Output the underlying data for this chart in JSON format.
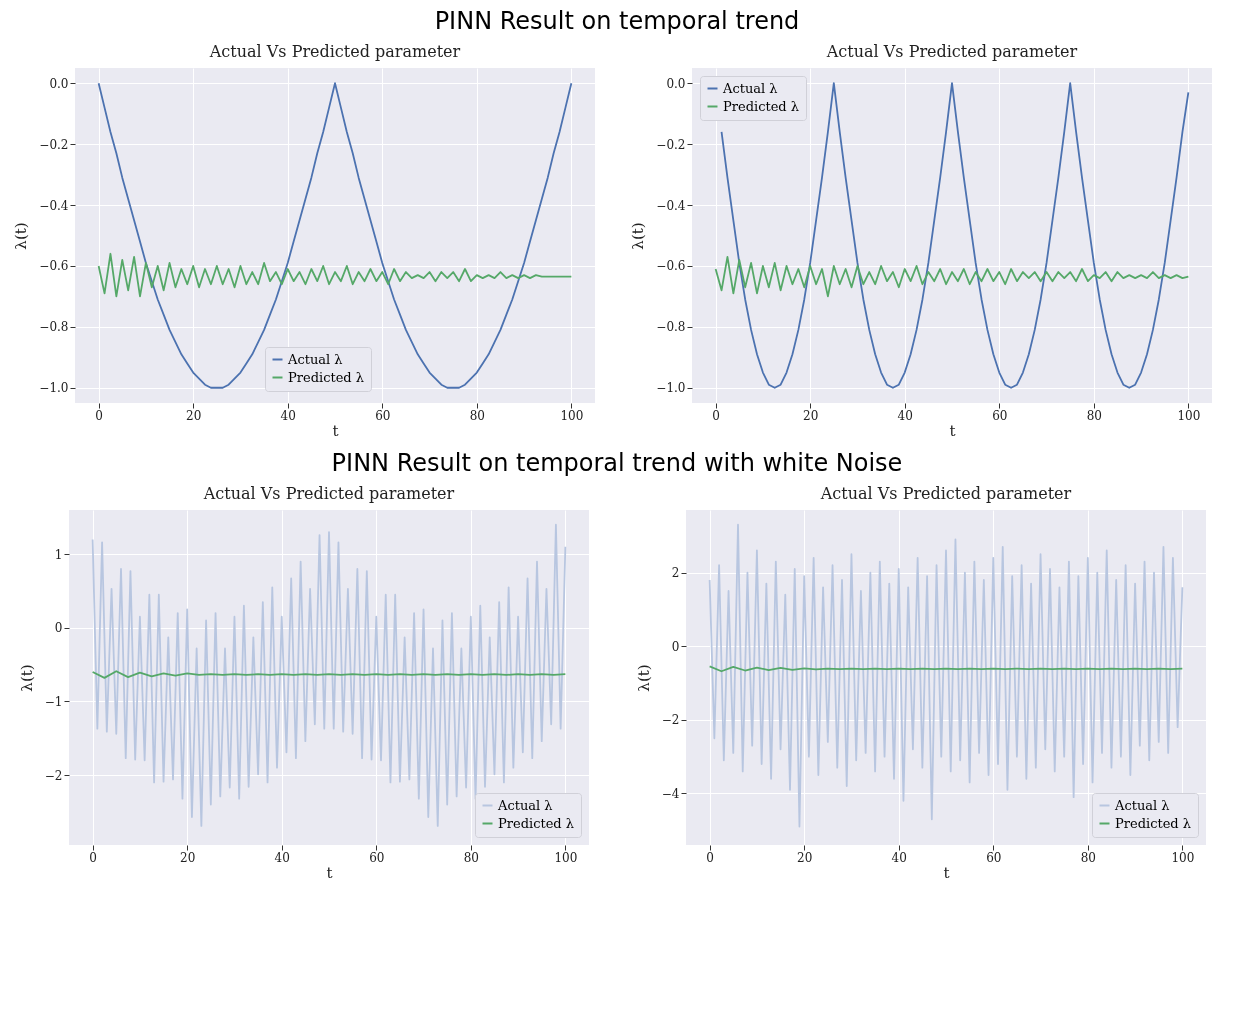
{
  "chart_data": [
    {
      "type": "line",
      "title": "Actual Vs Predicted parameter",
      "annotations": [
        "PINN Result on temporal trend"
      ],
      "xlabel": "t",
      "ylabel": "λ(t)",
      "grid": true,
      "legend": "bottom",
      "xlim": [
        -5,
        105
      ],
      "xticks": [
        0,
        20,
        40,
        60,
        80,
        100
      ],
      "ylim": [
        -1.05,
        0.05
      ],
      "yticks": [
        {
          "value": -1,
          "label": "−1.0"
        },
        {
          "value": -0.8,
          "label": "−0.8"
        },
        {
          "value": -0.6,
          "label": "−0.6"
        },
        {
          "value": -0.4,
          "label": "−0.4"
        },
        {
          "value": -0.2,
          "label": "−0.2"
        },
        {
          "value": 0,
          "label": "0.0"
        }
      ],
      "x": [
        0,
        1.25,
        2.5,
        3.75,
        5,
        6.25,
        7.5,
        8.75,
        10,
        11.25,
        12.5,
        13.75,
        15,
        16.25,
        17.5,
        18.75,
        20,
        21.25,
        22.5,
        23.75,
        25,
        26.25,
        27.5,
        28.75,
        30,
        31.25,
        32.5,
        33.75,
        35,
        36.25,
        37.5,
        38.75,
        40,
        41.25,
        42.5,
        43.75,
        45,
        46.25,
        47.5,
        48.75,
        50,
        51.25,
        52.5,
        53.75,
        55,
        56.25,
        57.5,
        58.75,
        60,
        61.25,
        62.5,
        63.75,
        65,
        66.25,
        67.5,
        68.75,
        70,
        71.25,
        72.5,
        73.75,
        75,
        76.25,
        77.5,
        78.75,
        80,
        81.25,
        82.5,
        83.75,
        85,
        86.25,
        87.5,
        88.75,
        90,
        91.25,
        92.5,
        93.75,
        95,
        96.25,
        97.5,
        98.75,
        100
      ],
      "series": [
        {
          "name": "Actual λ",
          "color": "#4c72b0",
          "values": [
            0,
            -0.08,
            -0.16,
            -0.23,
            -0.31,
            -0.38,
            -0.45,
            -0.52,
            -0.59,
            -0.65,
            -0.71,
            -0.76,
            -0.81,
            -0.85,
            -0.89,
            -0.92,
            -0.95,
            -0.97,
            -0.99,
            -1.0,
            -1.0,
            -1.0,
            -0.99,
            -0.97,
            -0.95,
            -0.92,
            -0.89,
            -0.85,
            -0.81,
            -0.76,
            -0.71,
            -0.65,
            -0.59,
            -0.52,
            -0.45,
            -0.38,
            -0.31,
            -0.23,
            -0.16,
            -0.08,
            0,
            -0.08,
            -0.16,
            -0.23,
            -0.31,
            -0.38,
            -0.45,
            -0.52,
            -0.59,
            -0.65,
            -0.71,
            -0.76,
            -0.81,
            -0.85,
            -0.89,
            -0.92,
            -0.95,
            -0.97,
            -0.99,
            -1.0,
            -1.0,
            -1.0,
            -0.99,
            -0.97,
            -0.95,
            -0.92,
            -0.89,
            -0.85,
            -0.81,
            -0.76,
            -0.71,
            -0.65,
            -0.59,
            -0.52,
            -0.45,
            -0.38,
            -0.31,
            -0.23,
            -0.16,
            -0.08,
            0
          ]
        },
        {
          "name": "Predicted λ",
          "color": "#55a868",
          "values": [
            -0.6,
            -0.69,
            -0.56,
            -0.7,
            -0.58,
            -0.68,
            -0.57,
            -0.7,
            -0.59,
            -0.67,
            -0.6,
            -0.68,
            -0.59,
            -0.67,
            -0.61,
            -0.66,
            -0.6,
            -0.67,
            -0.61,
            -0.66,
            -0.6,
            -0.66,
            -0.61,
            -0.67,
            -0.6,
            -0.66,
            -0.62,
            -0.66,
            -0.59,
            -0.65,
            -0.62,
            -0.66,
            -0.61,
            -0.65,
            -0.62,
            -0.66,
            -0.61,
            -0.65,
            -0.6,
            -0.66,
            -0.62,
            -0.65,
            -0.6,
            -0.66,
            -0.62,
            -0.65,
            -0.61,
            -0.65,
            -0.62,
            -0.66,
            -0.61,
            -0.65,
            -0.62,
            -0.64,
            -0.63,
            -0.64,
            -0.62,
            -0.65,
            -0.62,
            -0.64,
            -0.62,
            -0.65,
            -0.61,
            -0.65,
            -0.63,
            -0.64,
            -0.63,
            -0.64,
            -0.62,
            -0.64,
            -0.63,
            -0.64,
            -0.63,
            -0.64,
            -0.63,
            -0.635,
            -0.635,
            -0.635,
            -0.635,
            -0.635,
            -0.635
          ]
        }
      ]
    },
    {
      "type": "line",
      "title": "Actual Vs Predicted parameter",
      "xlabel": "t",
      "ylabel": "λ(t)",
      "grid": true,
      "legend": "top left",
      "xlim": [
        -5,
        105
      ],
      "xticks": [
        0,
        20,
        40,
        60,
        80,
        100
      ],
      "ylim": [
        -1.05,
        0.05
      ],
      "yticks": [
        {
          "value": -1,
          "label": "−1.0"
        },
        {
          "value": -0.8,
          "label": "−0.8"
        },
        {
          "value": -0.6,
          "label": "−0.6"
        },
        {
          "value": -0.4,
          "label": "−0.4"
        },
        {
          "value": -0.2,
          "label": "−0.2"
        },
        {
          "value": 0,
          "label": "0.0"
        }
      ],
      "x": [
        0,
        1.25,
        2.5,
        3.75,
        5,
        6.25,
        7.5,
        8.75,
        10,
        11.25,
        12.5,
        13.75,
        15,
        16.25,
        17.5,
        18.75,
        20,
        21.25,
        22.5,
        23.75,
        25,
        26.25,
        27.5,
        28.75,
        30,
        31.25,
        32.5,
        33.75,
        35,
        36.25,
        37.5,
        38.75,
        40,
        41.25,
        42.5,
        43.75,
        45,
        46.25,
        47.5,
        48.75,
        50,
        51.25,
        52.5,
        53.75,
        55,
        56.25,
        57.5,
        58.75,
        60,
        61.25,
        62.5,
        63.75,
        65,
        66.25,
        67.5,
        68.75,
        70,
        71.25,
        72.5,
        73.75,
        75,
        76.25,
        77.5,
        78.75,
        80,
        81.25,
        82.5,
        83.75,
        85,
        86.25,
        87.5,
        88.75,
        90,
        91.25,
        92.5,
        93.75,
        95,
        96.25,
        97.5,
        98.75,
        100
      ],
      "series": [
        {
          "name": "Actual λ",
          "color": "#4c72b0",
          "values": [
            null,
            -0.16,
            -0.31,
            -0.45,
            -0.59,
            -0.71,
            -0.81,
            -0.89,
            -0.95,
            -0.99,
            -1.0,
            -0.99,
            -0.95,
            -0.89,
            -0.81,
            -0.71,
            -0.59,
            -0.45,
            -0.31,
            -0.16,
            0,
            -0.16,
            -0.31,
            -0.45,
            -0.59,
            -0.71,
            -0.81,
            -0.89,
            -0.95,
            -0.99,
            -1.0,
            -0.99,
            -0.95,
            -0.89,
            -0.81,
            -0.71,
            -0.59,
            -0.45,
            -0.31,
            -0.16,
            0,
            -0.16,
            -0.31,
            -0.45,
            -0.59,
            -0.71,
            -0.81,
            -0.89,
            -0.95,
            -0.99,
            -1.0,
            -0.99,
            -0.95,
            -0.89,
            -0.81,
            -0.71,
            -0.59,
            -0.45,
            -0.31,
            -0.16,
            0,
            -0.16,
            -0.31,
            -0.45,
            -0.59,
            -0.71,
            -0.81,
            -0.89,
            -0.95,
            -0.99,
            -1.0,
            -0.99,
            -0.95,
            -0.89,
            -0.81,
            -0.71,
            -0.59,
            -0.45,
            -0.31,
            -0.16,
            -0.03
          ]
        },
        {
          "name": "Predicted λ",
          "color": "#55a868",
          "values": [
            -0.61,
            -0.68,
            -0.57,
            -0.69,
            -0.58,
            -0.67,
            -0.59,
            -0.69,
            -0.6,
            -0.67,
            -0.59,
            -0.68,
            -0.6,
            -0.66,
            -0.61,
            -0.67,
            -0.6,
            -0.66,
            -0.61,
            -0.7,
            -0.6,
            -0.66,
            -0.61,
            -0.67,
            -0.6,
            -0.66,
            -0.62,
            -0.66,
            -0.6,
            -0.65,
            -0.62,
            -0.67,
            -0.61,
            -0.65,
            -0.6,
            -0.66,
            -0.62,
            -0.65,
            -0.61,
            -0.66,
            -0.62,
            -0.65,
            -0.61,
            -0.66,
            -0.62,
            -0.65,
            -0.61,
            -0.65,
            -0.62,
            -0.66,
            -0.61,
            -0.65,
            -0.62,
            -0.64,
            -0.62,
            -0.65,
            -0.62,
            -0.65,
            -0.62,
            -0.64,
            -0.62,
            -0.65,
            -0.61,
            -0.65,
            -0.63,
            -0.64,
            -0.62,
            -0.65,
            -0.62,
            -0.64,
            -0.63,
            -0.64,
            -0.63,
            -0.64,
            -0.62,
            -0.64,
            -0.63,
            -0.64,
            -0.63,
            -0.64,
            -0.635
          ]
        }
      ]
    },
    {
      "type": "line",
      "title": "Actual Vs Predicted parameter",
      "annotations": [
        "PINN Result on temporal trend with white Noise"
      ],
      "xlabel": "t",
      "ylabel": "λ(t)",
      "grid": true,
      "legend": "bottom right",
      "xlim": [
        -5,
        105
      ],
      "xticks": [
        0,
        20,
        40,
        60,
        80,
        100
      ],
      "ylim": [
        -2.95,
        1.6
      ],
      "yticks": [
        {
          "value": -2,
          "label": "−2"
        },
        {
          "value": -1,
          "label": "−1"
        },
        0,
        1
      ],
      "x": [
        0,
        1,
        2,
        3,
        4,
        5,
        6,
        7,
        8,
        9,
        10,
        11,
        12,
        13,
        14,
        15,
        16,
        17,
        18,
        19,
        20,
        21,
        22,
        23,
        24,
        25,
        26,
        27,
        28,
        29,
        30,
        31,
        32,
        33,
        34,
        35,
        36,
        37,
        38,
        39,
        40,
        41,
        42,
        43,
        44,
        45,
        46,
        47,
        48,
        49,
        50,
        51,
        52,
        53,
        54,
        55,
        56,
        57,
        58,
        59,
        60,
        61,
        62,
        63,
        64,
        65,
        66,
        67,
        68,
        69,
        70,
        71,
        72,
        73,
        74,
        75,
        76,
        77,
        78,
        79,
        80,
        81,
        82,
        83,
        84,
        85,
        86,
        87,
        88,
        89,
        90,
        91,
        92,
        93,
        94,
        95,
        96,
        97,
        98,
        99,
        100
      ],
      "series": [
        {
          "name": "Actual λ",
          "color": "#b8c6e0",
          "values": [
            1.2,
            -1.37,
            1.16,
            -1.41,
            0.53,
            -1.44,
            0.8,
            -1.77,
            0.77,
            -1.79,
            0.15,
            -1.8,
            0.45,
            -2.1,
            0.45,
            -2.09,
            -0.13,
            -2.06,
            0.2,
            -2.32,
            0.25,
            -2.57,
            -0.28,
            -2.69,
            0.1,
            -2.4,
            0.2,
            -2.29,
            -0.28,
            -2.17,
            0.15,
            -2.32,
            0.3,
            -2.16,
            -0.13,
            -1.99,
            0.35,
            -2.1,
            0.55,
            -1.9,
            0.15,
            -1.69,
            0.67,
            -1.77,
            0.9,
            -1.54,
            0.53,
            -1.31,
            1.26,
            -1.37,
            1.3,
            -1.37,
            1.16,
            -1.41,
            0.53,
            -1.44,
            0.8,
            -1.77,
            0.77,
            -1.79,
            0.15,
            -1.8,
            0.45,
            -2.1,
            0.45,
            -2.09,
            -0.13,
            -2.06,
            0.2,
            -2.32,
            0.25,
            -2.57,
            -0.28,
            -2.69,
            0.1,
            -2.4,
            0.2,
            -2.29,
            -0.28,
            -2.17,
            0.15,
            -2.32,
            0.3,
            -2.16,
            -0.13,
            -1.99,
            0.35,
            -2.1,
            0.55,
            -1.9,
            0.15,
            -1.69,
            0.67,
            -1.77,
            0.9,
            -1.54,
            0.53,
            -1.31,
            1.4,
            -1.37,
            1.1
          ]
        },
        {
          "name": "Predicted λ",
          "color": "#55a868",
          "x": [
            0,
            2.5,
            5,
            7.5,
            10,
            12.5,
            15,
            17.5,
            20,
            22.5,
            25,
            27.5,
            30,
            32.5,
            35,
            37.5,
            40,
            42.5,
            45,
            47.5,
            50,
            52.5,
            55,
            57.5,
            60,
            62.5,
            65,
            67.5,
            70,
            72.5,
            75,
            77.5,
            80,
            82.5,
            85,
            87.5,
            90,
            92.5,
            95,
            97.5,
            100
          ],
          "values": [
            -0.6,
            -0.68,
            -0.59,
            -0.67,
            -0.61,
            -0.66,
            -0.62,
            -0.65,
            -0.62,
            -0.64,
            -0.63,
            -0.64,
            -0.63,
            -0.64,
            -0.63,
            -0.64,
            -0.63,
            -0.64,
            -0.63,
            -0.64,
            -0.63,
            -0.64,
            -0.63,
            -0.64,
            -0.63,
            -0.64,
            -0.63,
            -0.64,
            -0.63,
            -0.64,
            -0.63,
            -0.64,
            -0.63,
            -0.64,
            -0.63,
            -0.64,
            -0.63,
            -0.64,
            -0.63,
            -0.64,
            -0.63
          ]
        }
      ]
    },
    {
      "type": "line",
      "title": "Actual Vs Predicted parameter",
      "xlabel": "t",
      "ylabel": "λ(t)",
      "grid": true,
      "legend": "bottom right",
      "xlim": [
        -5,
        105
      ],
      "xticks": [
        0,
        20,
        40,
        60,
        80,
        100
      ],
      "ylim": [
        -5.4,
        3.7
      ],
      "yticks": [
        {
          "value": -4,
          "label": "−4"
        },
        {
          "value": -2,
          "label": "−2"
        },
        0,
        2
      ],
      "x": [
        0,
        1,
        2,
        3,
        4,
        5,
        6,
        7,
        8,
        9,
        10,
        11,
        12,
        13,
        14,
        15,
        16,
        17,
        18,
        19,
        20,
        21,
        22,
        23,
        24,
        25,
        26,
        27,
        28,
        29,
        30,
        31,
        32,
        33,
        34,
        35,
        36,
        37,
        38,
        39,
        40,
        41,
        42,
        43,
        44,
        45,
        46,
        47,
        48,
        49,
        50,
        51,
        52,
        53,
        54,
        55,
        56,
        57,
        58,
        59,
        60,
        61,
        62,
        63,
        64,
        65,
        66,
        67,
        68,
        69,
        70,
        71,
        72,
        73,
        74,
        75,
        76,
        77,
        78,
        79,
        80,
        81,
        82,
        83,
        84,
        85,
        86,
        87,
        88,
        89,
        90,
        91,
        92,
        93,
        94,
        95,
        96,
        97,
        98,
        99,
        100
      ],
      "series": [
        {
          "name": "Actual λ",
          "color": "#b8c6e0",
          "values": [
            1.8,
            -2.5,
            2.2,
            -3.1,
            1.5,
            -2.9,
            3.3,
            -3.4,
            2.0,
            -2.7,
            2.6,
            -3.2,
            1.7,
            -3.6,
            2.3,
            -2.8,
            1.4,
            -3.9,
            2.1,
            -4.9,
            1.9,
            -3.0,
            2.4,
            -3.5,
            1.6,
            -2.6,
            2.2,
            -3.3,
            1.8,
            -3.8,
            2.5,
            -3.1,
            1.5,
            -2.9,
            2.0,
            -3.4,
            2.3,
            -3.0,
            1.7,
            -3.6,
            2.1,
            -4.2,
            1.6,
            -2.8,
            2.4,
            -3.3,
            1.9,
            -4.7,
            2.2,
            -3.0,
            2.6,
            -3.4,
            2.9,
            -3.1,
            2.0,
            -3.7,
            2.3,
            -2.9,
            1.8,
            -3.5,
            2.4,
            -3.2,
            2.7,
            -3.9,
            1.9,
            -3.0,
            2.2,
            -3.6,
            1.7,
            -3.3,
            2.5,
            -2.8,
            2.1,
            -3.4,
            1.6,
            -3.0,
            2.3,
            -4.1,
            1.9,
            -3.2,
            2.4,
            -3.7,
            2.0,
            -2.9,
            2.6,
            -3.3,
            1.8,
            -3.0,
            2.2,
            -3.5,
            1.7,
            -2.7,
            2.3,
            -3.1,
            2.0,
            -2.6,
            2.7,
            -2.9,
            2.4,
            -2.2,
            1.6
          ]
        },
        {
          "name": "Predicted λ",
          "color": "#55a868",
          "x": [
            0,
            2.5,
            5,
            7.5,
            10,
            12.5,
            15,
            17.5,
            20,
            22.5,
            25,
            27.5,
            30,
            32.5,
            35,
            37.5,
            40,
            42.5,
            45,
            47.5,
            50,
            52.5,
            55,
            57.5,
            60,
            62.5,
            65,
            67.5,
            70,
            72.5,
            75,
            77.5,
            80,
            82.5,
            85,
            87.5,
            90,
            92.5,
            95,
            97.5,
            100
          ],
          "values": [
            -0.55,
            -0.68,
            -0.56,
            -0.66,
            -0.58,
            -0.65,
            -0.59,
            -0.64,
            -0.6,
            -0.63,
            -0.61,
            -0.62,
            -0.61,
            -0.62,
            -0.61,
            -0.62,
            -0.61,
            -0.62,
            -0.61,
            -0.62,
            -0.61,
            -0.62,
            -0.61,
            -0.62,
            -0.61,
            -0.62,
            -0.61,
            -0.62,
            -0.61,
            -0.62,
            -0.61,
            -0.62,
            -0.61,
            -0.62,
            -0.61,
            -0.62,
            -0.61,
            -0.62,
            -0.61,
            -0.62,
            -0.61
          ]
        }
      ]
    }
  ]
}
